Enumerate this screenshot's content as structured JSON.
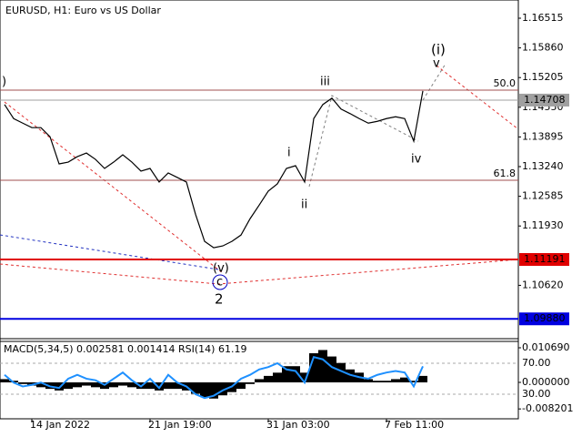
{
  "chart_data": [
    {
      "type": "line",
      "title": "EURUSD, H1:  Euro vs US Dollar",
      "categories": [
        null,
        null,
        null,
        "14 Jan 2022",
        null,
        null,
        null,
        null,
        null,
        null,
        null,
        null,
        null,
        null,
        null,
        null,
        "21 Jan 19:00",
        null,
        null,
        null,
        null,
        null,
        null,
        null,
        null,
        null,
        null,
        null,
        null,
        "31 Jan 03:00",
        null,
        null,
        null,
        null,
        null,
        null,
        null,
        null,
        null,
        null,
        null,
        null,
        "7 Feb 11:00",
        null,
        null,
        null,
        null
      ],
      "series": [
        {
          "color": "#000000",
          "values": [
            1.1461,
            1.143,
            1.142,
            1.141,
            1.141,
            1.139,
            1.133,
            1.1334,
            1.1346,
            1.1354,
            1.134,
            1.132,
            1.1334,
            1.135,
            1.1334,
            1.1314,
            1.132,
            1.129,
            1.131,
            1.13,
            1.129,
            1.1219,
            1.1159,
            1.1145,
            1.1149,
            1.1159,
            1.1173,
            1.1209,
            1.1239,
            1.127,
            1.1286,
            1.132,
            1.1326,
            1.129,
            1.143,
            1.1461,
            1.1475,
            1.1451,
            1.1441,
            1.143,
            1.142,
            1.1424,
            1.143,
            1.1434,
            1.143,
            1.138,
            1.1491
          ]
        }
      ],
      "ylim": [
        1.09483,
        1.16917
      ],
      "yticks": [
        1.16515,
        {
          "value": 1.1586,
          "label": "1.15860"
        },
        1.15205,
        {
          "value": 1.1455,
          "label": "1.14550"
        },
        1.13895,
        {
          "value": 1.1324,
          "label": "1.13240"
        },
        1.12585,
        {
          "value": 1.1193,
          "label": "1.11930"
        },
        {
          "value": 1.1062,
          "label": "1.10620"
        }
      ],
      "price_levels": [
        {
          "value": 1.14708,
          "color": "#a0a0a0"
        },
        {
          "value": 1.11191,
          "color": "#e00000"
        },
        {
          "value": {
            "value": 1.0988,
            "label": "1.09880"
          },
          "color": "#0000e0"
        }
      ],
      "fib_levels": [
        {
          "price": 1.14928,
          "label": "50.0"
        },
        {
          "price": 1.12939,
          "label": "61.8"
        }
      ],
      "annotations": [
        {
          "text": ")",
          "color": "#c00000"
        },
        {
          "text": "(i)",
          "color": "#c00000"
        },
        {
          "text": "v",
          "color": "#808080"
        },
        {
          "text": "iii",
          "color": "#808080"
        },
        {
          "text": "i",
          "color": "#505050"
        },
        {
          "text": "ii",
          "color": "#808080"
        },
        {
          "text": "iv",
          "color": "#808080"
        },
        {
          "text": "(v)",
          "color": "#c00000"
        },
        {
          "text": "c",
          "color": "#0000c0"
        },
        {
          "text": "2",
          "color": "#c00000"
        }
      ]
    },
    {
      "type": "macd",
      "title": "MACD(5,34,5) 0.002581 0.001414 RSI(14) 61.19",
      "color": "#000000",
      "values": [
        0.001,
        0.0005,
        -0.0005,
        -0.001,
        -0.0015,
        -0.002,
        -0.0025,
        -0.002,
        -0.0015,
        -0.001,
        -0.0015,
        -0.002,
        -0.0015,
        -0.001,
        -0.0015,
        -0.002,
        -0.002,
        -0.0025,
        -0.002,
        -0.002,
        -0.0025,
        -0.0035,
        -0.0045,
        -0.005,
        -0.004,
        -0.003,
        -0.002,
        -0.0005,
        0.001,
        0.002,
        0.003,
        0.005,
        0.005,
        0.003,
        0.009,
        0.01,
        0.008,
        0.006,
        0.004,
        0.003,
        0.001,
        0.0005,
        0.0005,
        0.001,
        0.0015,
        0.0005,
        0.002
      ],
      "series": [
        {
          "color": "#1e90ff",
          "axis": "y2",
          "values": [
            55,
            45,
            40,
            42,
            45,
            40,
            38,
            50,
            55,
            50,
            48,
            42,
            50,
            58,
            48,
            40,
            50,
            38,
            55,
            45,
            40,
            30,
            25,
            28,
            35,
            40,
            50,
            55,
            62,
            65,
            70,
            62,
            60,
            45,
            78,
            75,
            65,
            60,
            55,
            52,
            50,
            55,
            58,
            60,
            58,
            40,
            66
          ]
        }
      ],
      "ylim": [
        -0.01125,
        0.01266
      ],
      "yticks": [
        {
          "value": 0.01069,
          "label": "0.010690"
        },
        {
          "value": 0,
          "label": "0.000000"
        },
        -0.008201
      ],
      "y2lim": [
        -1.8,
        98.2
      ],
      "y2ticks": [
        {
          "value": 70,
          "label": "70.00"
        },
        {
          "value": 30,
          "label": "30.00"
        }
      ]
    }
  ]
}
